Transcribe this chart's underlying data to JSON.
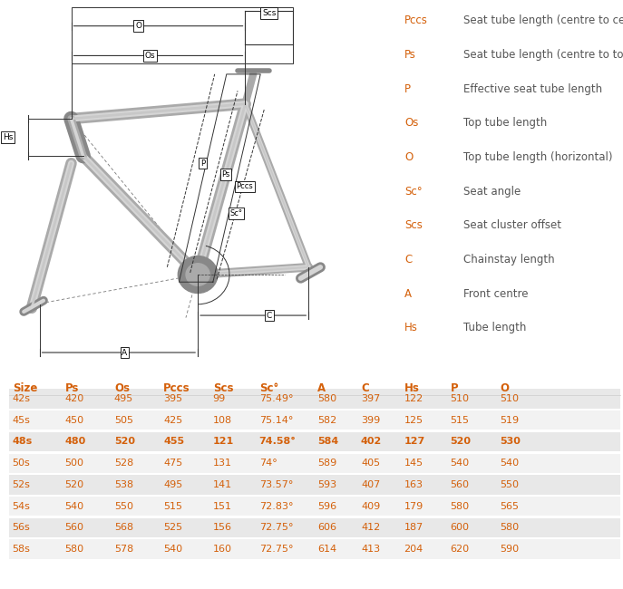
{
  "legend_items": [
    [
      "Pccs",
      "Seat tube length (centre to centre)"
    ],
    [
      "Ps",
      "Seat tube length (centre to top)"
    ],
    [
      "P",
      "Effective seat tube length"
    ],
    [
      "Os",
      "Top tube length"
    ],
    [
      "O",
      "Top tube length (horizontal)"
    ],
    [
      "Sc°",
      "Seat angle"
    ],
    [
      "Scs",
      "Seat cluster offset"
    ],
    [
      "C",
      "Chainstay length"
    ],
    [
      "A",
      "Front centre"
    ],
    [
      "Hs",
      "Tube length"
    ]
  ],
  "table_headers": [
    "Size",
    "Ps",
    "Os",
    "Pccs",
    "Scs",
    "Sc°",
    "A",
    "C",
    "Hs",
    "P",
    "O"
  ],
  "table_data": [
    [
      "42s",
      "420",
      "495",
      "395",
      "99",
      "75.49°",
      "580",
      "397",
      "122",
      "510",
      "510"
    ],
    [
      "45s",
      "450",
      "505",
      "425",
      "108",
      "75.14°",
      "582",
      "399",
      "125",
      "515",
      "519"
    ],
    [
      "48s",
      "480",
      "520",
      "455",
      "121",
      "74.58°",
      "584",
      "402",
      "127",
      "520",
      "530"
    ],
    [
      "50s",
      "500",
      "528",
      "475",
      "131",
      "74°",
      "589",
      "405",
      "145",
      "540",
      "540"
    ],
    [
      "52s",
      "520",
      "538",
      "495",
      "141",
      "73.57°",
      "593",
      "407",
      "163",
      "560",
      "550"
    ],
    [
      "54s",
      "540",
      "550",
      "515",
      "151",
      "72.83°",
      "596",
      "409",
      "179",
      "580",
      "565"
    ],
    [
      "56s",
      "560",
      "568",
      "525",
      "156",
      "72.75°",
      "606",
      "412",
      "187",
      "600",
      "580"
    ],
    [
      "58s",
      "580",
      "578",
      "540",
      "160",
      "72.75°",
      "614",
      "413",
      "204",
      "620",
      "590"
    ]
  ],
  "highlight_rows": [
    2
  ],
  "label_color": "#d4600a",
  "desc_color": "#555555",
  "header_color": "#d4600a",
  "data_color_normal": "#d4600a",
  "row_bg_even": "#e8e8e8",
  "row_bg_odd": "#f2f2f2",
  "table_font_size": 8.0,
  "legend_label_fontsize": 8.5,
  "legend_desc_fontsize": 8.5,
  "bg_color": "#ffffff",
  "line_color": "#333333",
  "frame_color": "#aaaaaa",
  "frame_dark": "#888888",
  "frame_highlight": "#d5d5d5"
}
